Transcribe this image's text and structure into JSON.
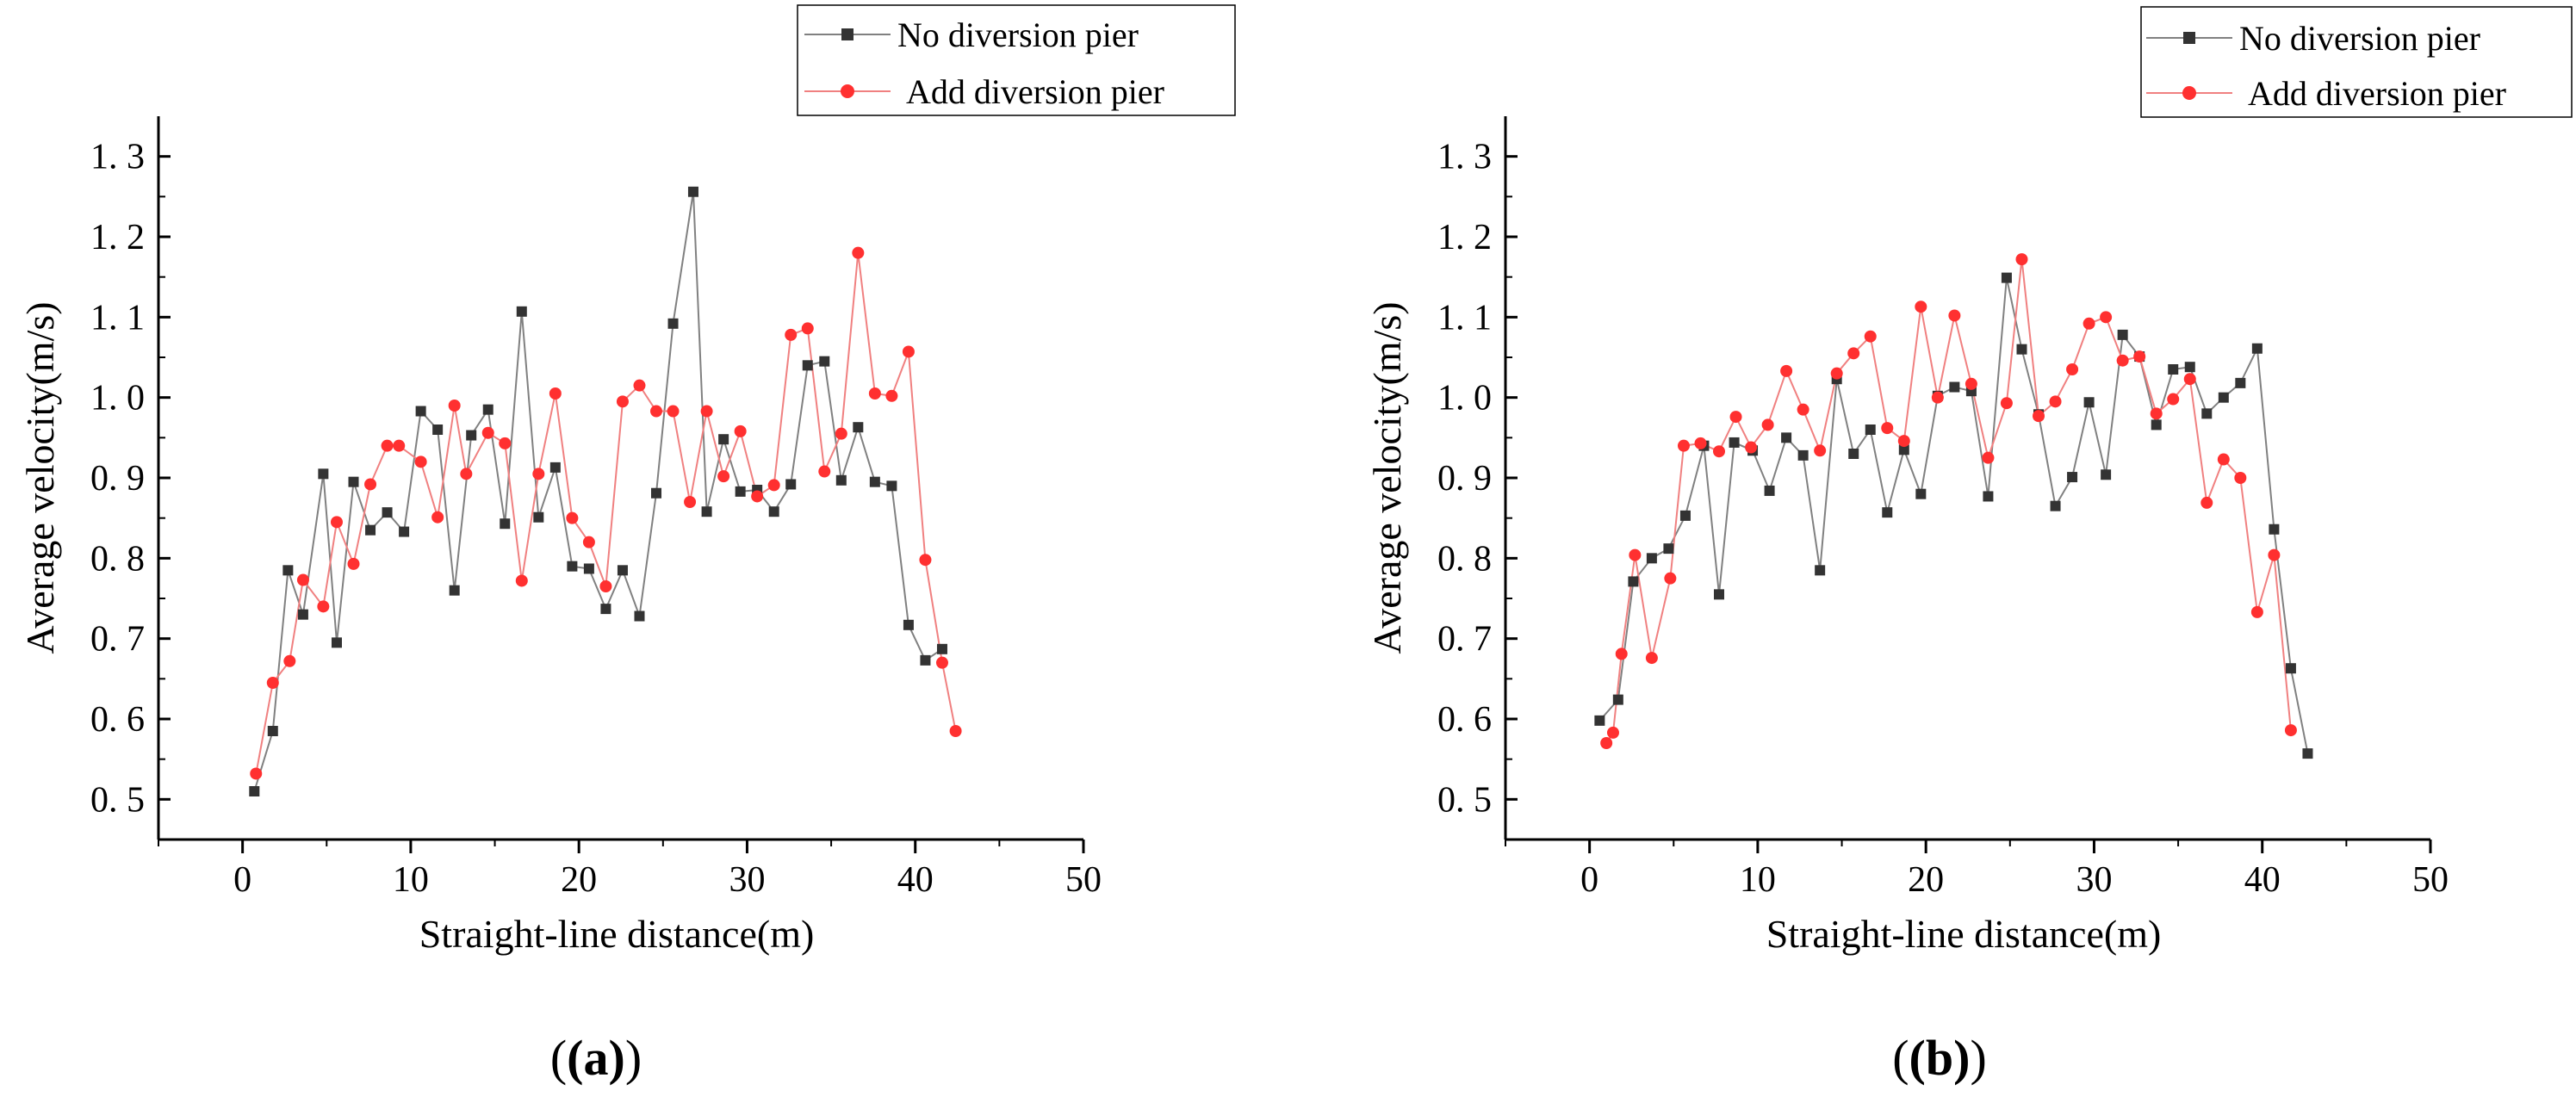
{
  "figure": {
    "panel_labels": [
      "(a)",
      "(b)"
    ]
  },
  "chart_data": [
    {
      "type": "line",
      "panel_label": "(a)",
      "xlabel": "Straight-line distance(m)",
      "ylabel": "Average velocity(m/s)",
      "xlim": [
        -5,
        50
      ],
      "ylim": [
        0.45,
        1.35
      ],
      "xticks": [
        0,
        10,
        20,
        30,
        40,
        50
      ],
      "xtick_labels": [
        "0",
        "10",
        "20",
        "30",
        "40",
        "50"
      ],
      "yticks": [
        0.5,
        0.6,
        0.7,
        0.8,
        0.9,
        1.0,
        1.1,
        1.2,
        1.3
      ],
      "ytick_labels": [
        "0. 5",
        "0. 6",
        "0. 7",
        "0. 8",
        "0. 9",
        "1. 0",
        "1. 1",
        "1. 2",
        "1. 3"
      ],
      "legend_position": "top-right",
      "series": [
        {
          "name": "No diversion pier",
          "color": "#808080",
          "marker_color": "#333333",
          "marker": "square",
          "x": [
            0.7,
            1.8,
            2.7,
            3.6,
            4.8,
            5.6,
            6.6,
            7.6,
            8.6,
            9.6,
            10.6,
            11.6,
            12.6,
            13.6,
            14.6,
            15.6,
            16.6,
            17.6,
            18.6,
            19.6,
            20.6,
            21.6,
            22.6,
            23.6,
            24.6,
            25.6,
            26.8,
            27.6,
            28.6,
            29.6,
            30.6,
            31.6,
            32.6,
            33.6,
            34.6,
            35.6,
            36.6,
            37.6,
            38.6,
            39.6,
            40.6,
            41.6
          ],
          "y": [
            0.51,
            0.585,
            0.785,
            0.73,
            0.905,
            0.695,
            0.895,
            0.835,
            0.857,
            0.833,
            0.983,
            0.96,
            0.76,
            0.953,
            0.985,
            0.843,
            1.107,
            0.851,
            0.913,
            0.79,
            0.787,
            0.737,
            0.785,
            0.728,
            0.881,
            1.092,
            1.256,
            0.858,
            0.948,
            0.883,
            0.885,
            0.858,
            0.892,
            1.04,
            1.045,
            0.897,
            0.963,
            0.895,
            0.89,
            0.717,
            0.673,
            0.687
          ]
        },
        {
          "name": "Add diversion pier",
          "color": "#f08080",
          "marker_color": "#ff3030",
          "marker": "circle",
          "x": [
            0.8,
            1.8,
            2.8,
            3.6,
            4.8,
            5.6,
            6.6,
            7.6,
            8.6,
            9.3,
            10.6,
            11.6,
            12.6,
            13.3,
            14.6,
            15.6,
            16.6,
            17.6,
            18.6,
            19.6,
            20.6,
            21.6,
            22.6,
            23.6,
            24.6,
            25.6,
            26.6,
            27.6,
            28.6,
            29.6,
            30.6,
            31.6,
            32.6,
            33.6,
            34.6,
            35.6,
            36.6,
            37.6,
            38.6,
            39.6,
            40.6,
            41.6,
            42.4
          ],
          "y": [
            0.532,
            0.645,
            0.672,
            0.773,
            0.74,
            0.845,
            0.793,
            0.892,
            0.94,
            0.94,
            0.92,
            0.851,
            0.99,
            0.905,
            0.956,
            0.943,
            0.772,
            0.905,
            1.005,
            0.85,
            0.82,
            0.765,
            0.995,
            1.015,
            0.983,
            0.983,
            0.87,
            0.983,
            0.902,
            0.958,
            0.877,
            0.891,
            1.078,
            1.086,
            0.908,
            0.955,
            1.18,
            1.005,
            1.002,
            1.057,
            0.798,
            0.67,
            0.585
          ]
        }
      ]
    },
    {
      "type": "line",
      "panel_label": "(b)",
      "xlabel": "Straight-line distance(m)",
      "ylabel": "Average velocity(m/s)",
      "xlim": [
        -5,
        50
      ],
      "ylim": [
        0.45,
        1.35
      ],
      "xticks": [
        0,
        10,
        20,
        30,
        40,
        50
      ],
      "xtick_labels": [
        "0",
        "10",
        "20",
        "30",
        "40",
        "50"
      ],
      "yticks": [
        0.5,
        0.6,
        0.7,
        0.8,
        0.9,
        1.0,
        1.1,
        1.2,
        1.3
      ],
      "ytick_labels": [
        "0. 5",
        "0. 6",
        "0. 7",
        "0. 8",
        "0. 9",
        "1. 0",
        "1. 1",
        "1. 2",
        "1. 3"
      ],
      "legend_position": "top-right",
      "series": [
        {
          "name": "No diversion pier",
          "color": "#808080",
          "marker_color": "#333333",
          "marker": "square",
          "x": [
            0.6,
            1.7,
            2.6,
            3.7,
            4.7,
            5.7,
            6.8,
            7.7,
            8.6,
            9.7,
            10.7,
            11.7,
            12.7,
            13.7,
            14.7,
            15.7,
            16.7,
            17.7,
            18.7,
            19.7,
            20.7,
            21.7,
            22.7,
            23.7,
            24.8,
            25.7,
            26.7,
            27.7,
            28.7,
            29.7,
            30.7,
            31.7,
            32.7,
            33.7,
            34.7,
            35.7,
            36.7,
            37.7,
            38.7,
            39.7,
            40.7,
            41.7,
            42.7
          ],
          "y": [
            0.598,
            0.624,
            0.771,
            0.8,
            0.812,
            0.853,
            0.94,
            0.755,
            0.944,
            0.934,
            0.884,
            0.95,
            0.928,
            0.785,
            1.023,
            0.93,
            0.96,
            0.857,
            0.935,
            0.88,
            1.002,
            1.013,
            1.008,
            0.877,
            1.149,
            1.06,
            0.979,
            0.865,
            0.901,
            0.994,
            0.904,
            1.078,
            1.051,
            0.966,
            1.035,
            1.038,
            0.98,
            1.0,
            1.018,
            1.061,
            0.836,
            0.663,
            0.557
          ]
        },
        {
          "name": "Add diversion pier",
          "color": "#f08080",
          "marker_color": "#ff3030",
          "marker": "circle",
          "x": [
            1.0,
            1.4,
            1.9,
            2.7,
            3.7,
            4.8,
            5.6,
            6.6,
            7.7,
            8.7,
            9.6,
            10.6,
            11.7,
            12.7,
            13.7,
            14.7,
            15.7,
            16.7,
            17.7,
            18.7,
            19.7,
            20.7,
            21.7,
            22.7,
            23.7,
            24.8,
            25.7,
            26.7,
            27.7,
            28.7,
            29.7,
            30.7,
            31.7,
            32.7,
            33.7,
            34.7,
            35.7,
            36.7,
            37.7,
            38.7,
            39.7,
            40.7,
            41.7
          ],
          "y": [
            0.57,
            0.583,
            0.681,
            0.804,
            0.676,
            0.775,
            0.94,
            0.943,
            0.933,
            0.976,
            0.938,
            0.966,
            1.033,
            0.985,
            0.934,
            1.03,
            1.055,
            1.076,
            0.962,
            0.946,
            1.113,
            1.0,
            1.102,
            1.017,
            0.925,
            0.993,
            1.172,
            0.977,
            0.995,
            1.035,
            1.092,
            1.1,
            1.046,
            1.051,
            0.98,
            0.998,
            1.023,
            0.869,
            0.923,
            0.9,
            0.733,
            0.804,
            0.586
          ]
        }
      ]
    }
  ]
}
